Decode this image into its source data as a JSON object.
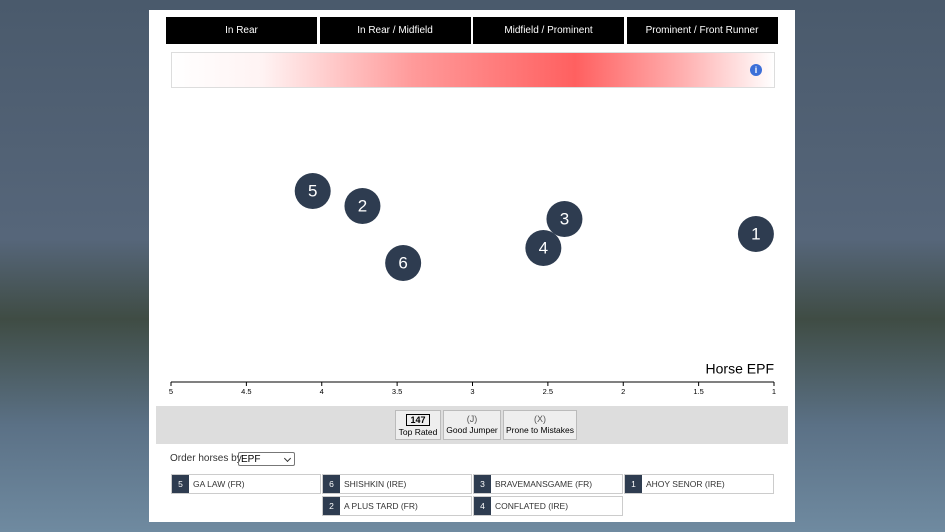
{
  "tabs": [
    "In Rear",
    "In Rear / Midfield",
    "Midfield / Prominent",
    "Prominent / Front Runner"
  ],
  "chart_data": {
    "type": "scatter",
    "xlabel": "Horse EPF",
    "xlim": [
      5,
      1
    ],
    "xticks": [
      5,
      4.5,
      4,
      3.5,
      3,
      2.5,
      2,
      1.5,
      1
    ],
    "color": "#2e3c50",
    "labels": [
      "5",
      "2",
      "6",
      "4",
      "3",
      "1"
    ],
    "x": [
      4.06,
      3.73,
      3.46,
      2.53,
      2.39,
      1.12
    ]
  },
  "filters": [
    {
      "badge": "147",
      "label": "Top Rated"
    },
    {
      "badge": "(J)",
      "label": "Good Jumper"
    },
    {
      "badge": "(X)",
      "label": "Prone to Mistakes"
    }
  ],
  "order": {
    "label": "Order horses by",
    "selected": "EPF"
  },
  "horse_list": [
    {
      "number": "5",
      "name": "GA LAW (FR)"
    },
    {
      "number": "6",
      "name": "SHISHKIN (IRE)"
    },
    {
      "number": "3",
      "name": "BRAVEMANSGAME (FR)"
    },
    {
      "number": "1",
      "name": "AHOY SENOR (IRE)"
    },
    {
      "number": "2",
      "name": "A PLUS TARD (FR)"
    },
    {
      "number": "4",
      "name": "CONFLATED (IRE)"
    }
  ]
}
